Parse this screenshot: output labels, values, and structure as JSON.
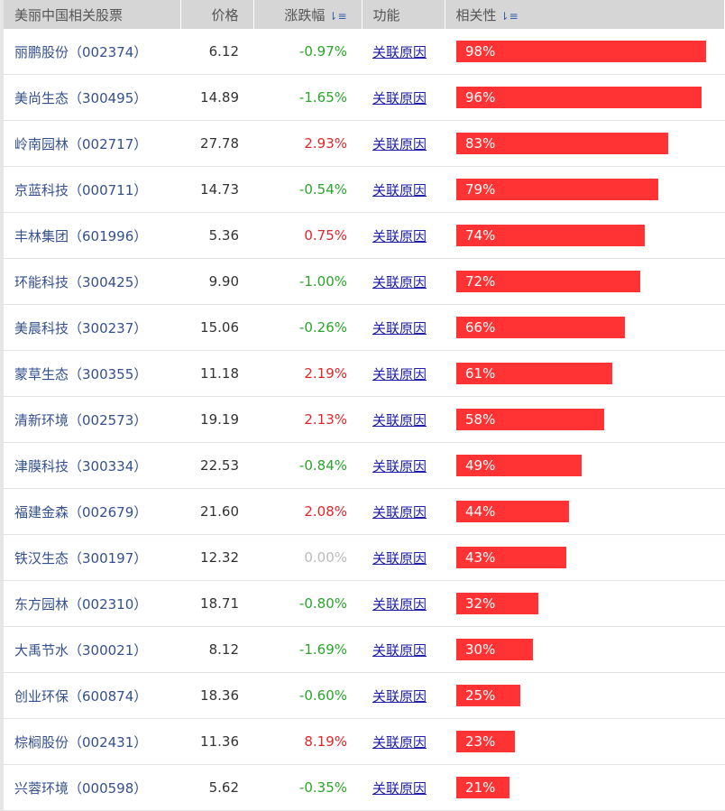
{
  "header": {
    "name": "美丽中国相关股票",
    "price": "价格",
    "change": "涨跌幅",
    "function": "功能",
    "relevance": "相关性",
    "sort_icon": "sort-desc-icon"
  },
  "colors": {
    "bar": "#ff3333",
    "up": "#e0262a",
    "down": "#2aa52a",
    "flat": "#bbbbbb"
  },
  "rows": [
    {
      "name": "丽鹏股份（002374）",
      "price": "6.12",
      "change": "-0.97%",
      "link": "关联原因",
      "relevance": 98
    },
    {
      "name": "美尚生态（300495）",
      "price": "14.89",
      "change": "-1.65%",
      "link": "关联原因",
      "relevance": 96
    },
    {
      "name": "岭南园林（002717）",
      "price": "27.78",
      "change": "2.93%",
      "link": "关联原因",
      "relevance": 83
    },
    {
      "name": "京蓝科技（000711）",
      "price": "14.73",
      "change": "-0.54%",
      "link": "关联原因",
      "relevance": 79
    },
    {
      "name": "丰林集团（601996）",
      "price": "5.36",
      "change": "0.75%",
      "link": "关联原因",
      "relevance": 74
    },
    {
      "name": "环能科技（300425）",
      "price": "9.90",
      "change": "-1.00%",
      "link": "关联原因",
      "relevance": 72
    },
    {
      "name": "美晨科技（300237）",
      "price": "15.06",
      "change": "-0.26%",
      "link": "关联原因",
      "relevance": 66
    },
    {
      "name": "蒙草生态（300355）",
      "price": "11.18",
      "change": "2.19%",
      "link": "关联原因",
      "relevance": 61
    },
    {
      "name": "清新环境（002573）",
      "price": "19.19",
      "change": "2.13%",
      "link": "关联原因",
      "relevance": 58
    },
    {
      "name": "津膜科技（300334）",
      "price": "22.53",
      "change": "-0.84%",
      "link": "关联原因",
      "relevance": 49
    },
    {
      "name": "福建金森（002679）",
      "price": "21.60",
      "change": "2.08%",
      "link": "关联原因",
      "relevance": 44
    },
    {
      "name": "铁汉生态（300197）",
      "price": "12.32",
      "change": "0.00%",
      "link": "关联原因",
      "relevance": 43
    },
    {
      "name": "东方园林（002310）",
      "price": "18.71",
      "change": "-0.80%",
      "link": "关联原因",
      "relevance": 32
    },
    {
      "name": "大禹节水（300021）",
      "price": "8.12",
      "change": "-1.69%",
      "link": "关联原因",
      "relevance": 30
    },
    {
      "name": "创业环保（600874）",
      "price": "18.36",
      "change": "-0.60%",
      "link": "关联原因",
      "relevance": 25
    },
    {
      "name": "棕榈股份（002431）",
      "price": "11.36",
      "change": "8.19%",
      "link": "关联原因",
      "relevance": 23
    },
    {
      "name": "兴蓉环境（000598）",
      "price": "5.62",
      "change": "-0.35%",
      "link": "关联原因",
      "relevance": 21
    }
  ]
}
